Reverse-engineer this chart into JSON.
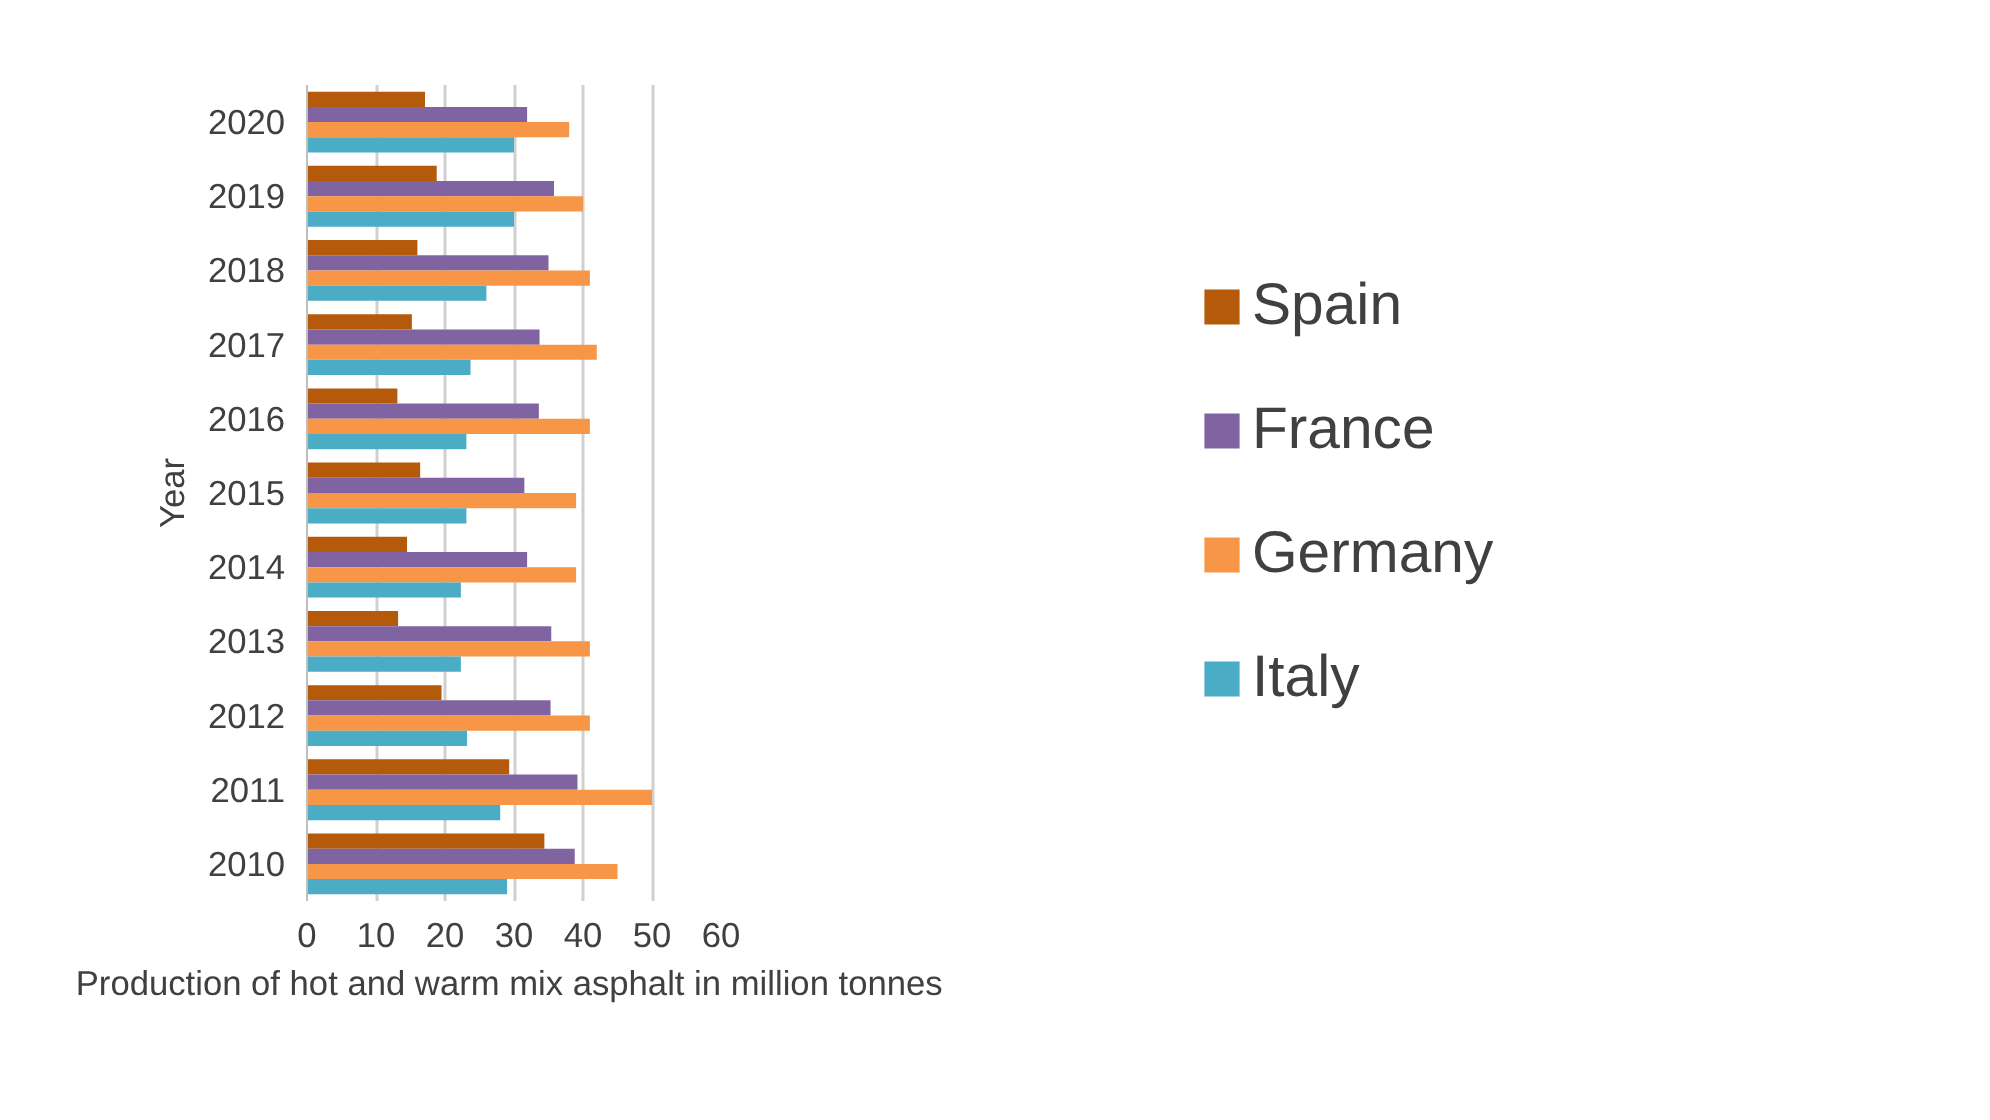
{
  "chart_data": {
    "type": "bar",
    "orientation": "horizontal",
    "xlabel": "Production of hot and warm mix asphalt  in million tonnes",
    "ylabel": "Year",
    "categories": [
      "2020",
      "2019",
      "2018",
      "2017",
      "2016",
      "2015",
      "2014",
      "2013",
      "2012",
      "2011",
      "2010"
    ],
    "series": [
      {
        "name": "Spain",
        "color": "#b55a0a",
        "values": [
          17.1,
          18.8,
          16.0,
          15.2,
          13.1,
          16.4,
          14.5,
          13.2,
          19.5,
          29.3,
          34.4
        ]
      },
      {
        "name": "France",
        "color": "#8064a2",
        "values": [
          31.9,
          35.8,
          35.0,
          33.7,
          33.6,
          31.5,
          31.9,
          35.4,
          35.3,
          39.2,
          38.8
        ]
      },
      {
        "name": "Germany",
        "color": "#f79646",
        "values": [
          38.0,
          40.0,
          41.0,
          42.0,
          41.0,
          39.0,
          39.0,
          41.0,
          41.0,
          50.0,
          45.0
        ]
      },
      {
        "name": "Italy",
        "color": "#4bacc6",
        "values": [
          30.0,
          30.0,
          26.0,
          23.7,
          23.1,
          23.1,
          22.3,
          22.3,
          23.2,
          28.0,
          29.0
        ]
      }
    ],
    "xlim": [
      0,
      60
    ],
    "xticks": [
      0,
      10,
      20,
      30,
      40,
      50,
      60
    ],
    "grid": "x",
    "legend": "right"
  }
}
